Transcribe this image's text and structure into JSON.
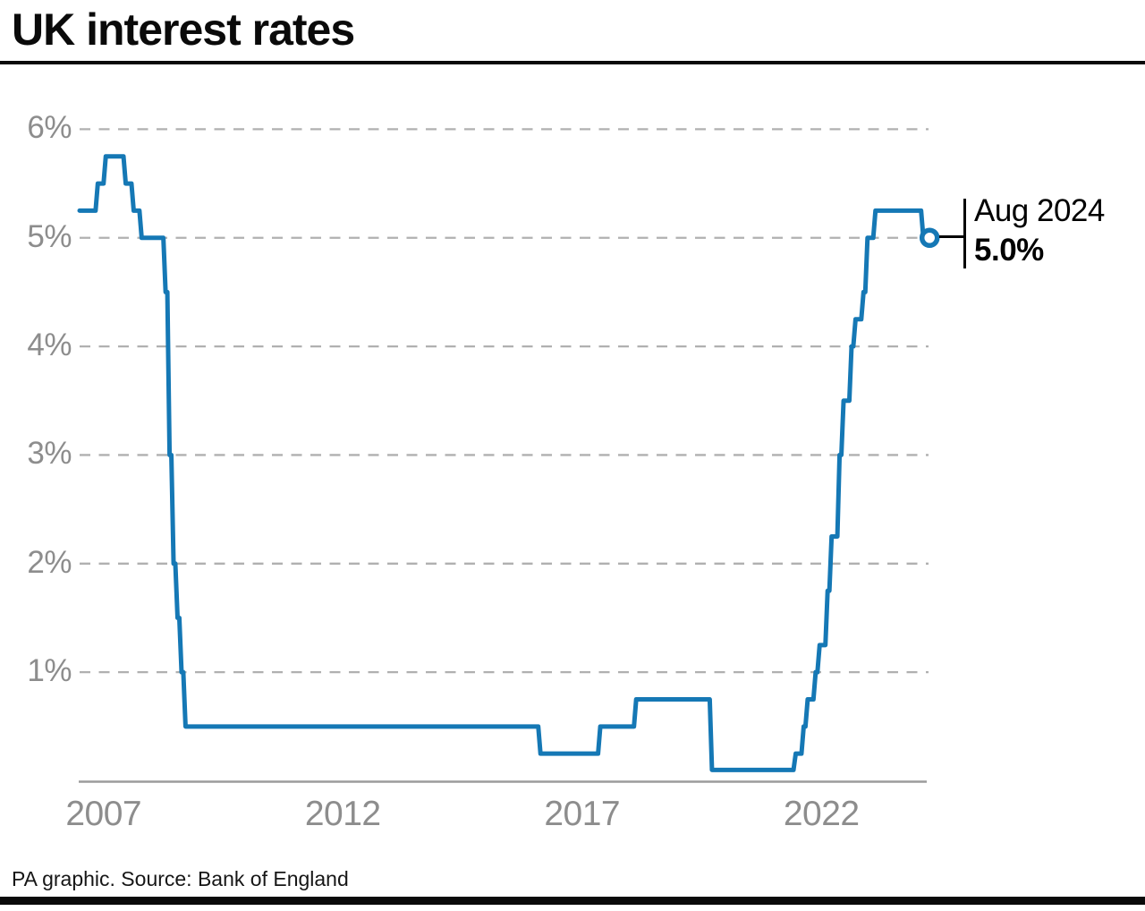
{
  "header": {
    "title": "UK interest rates"
  },
  "footer": {
    "source": "PA graphic. Source: Bank of England"
  },
  "chart_data": {
    "type": "line",
    "title": "UK interest rates",
    "unit": "%",
    "grid": "horizontal-dashed",
    "legend": "none",
    "x_range": [
      "2007-01",
      "2024-10"
    ],
    "y_range": [
      0,
      6.3
    ],
    "y_ticks": {
      "values": [
        1,
        2,
        3,
        4,
        5,
        6
      ],
      "labels": [
        "1%",
        "2%",
        "3%",
        "4%",
        "5%",
        "6%"
      ]
    },
    "x_ticks": {
      "labels": [
        "2007",
        "2012",
        "2017",
        "2022"
      ]
    },
    "points": [
      [
        "2007-01",
        5.25
      ],
      [
        "2007-05",
        5.5
      ],
      [
        "2007-07",
        5.75
      ],
      [
        "2007-12",
        5.5
      ],
      [
        "2008-02",
        5.25
      ],
      [
        "2008-04",
        5.0
      ],
      [
        "2008-10",
        4.5
      ],
      [
        "2008-11",
        3.0
      ],
      [
        "2008-12",
        2.0
      ],
      [
        "2009-01",
        1.5
      ],
      [
        "2009-02",
        1.0
      ],
      [
        "2009-03",
        0.5
      ],
      [
        "2016-08",
        0.25
      ],
      [
        "2017-11",
        0.5
      ],
      [
        "2018-08",
        0.75
      ],
      [
        "2020-03",
        0.1
      ],
      [
        "2021-12",
        0.25
      ],
      [
        "2022-02",
        0.5
      ],
      [
        "2022-03",
        0.75
      ],
      [
        "2022-05",
        1.0
      ],
      [
        "2022-06",
        1.25
      ],
      [
        "2022-08",
        1.75
      ],
      [
        "2022-09",
        2.25
      ],
      [
        "2022-11",
        3.0
      ],
      [
        "2022-12",
        3.5
      ],
      [
        "2023-02",
        4.0
      ],
      [
        "2023-03",
        4.25
      ],
      [
        "2023-05",
        4.5
      ],
      [
        "2023-06",
        5.0
      ],
      [
        "2023-08",
        5.25
      ],
      [
        "2024-08",
        5.0
      ]
    ],
    "end_annotation": {
      "label": "Aug 2024",
      "value": "5.0%",
      "marker": "open-circle"
    },
    "colors": {
      "line": "#1578b5",
      "grid": "#b0b0b0",
      "axis": "#9c9c9c",
      "tick_label": "#8d8d8d",
      "annotation": "#000000"
    }
  }
}
